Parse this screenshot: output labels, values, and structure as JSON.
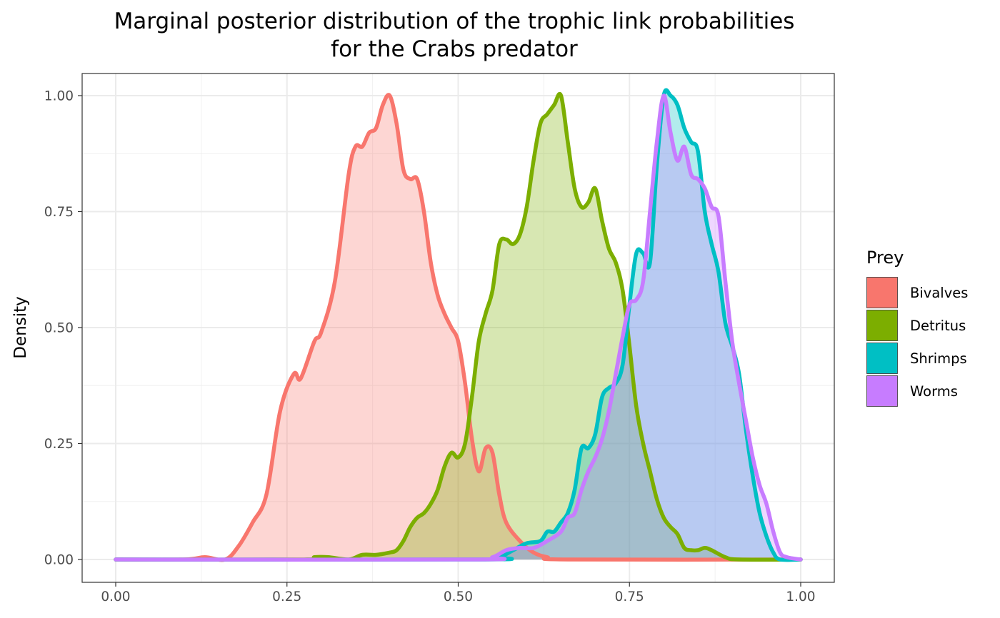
{
  "chart_data": {
    "type": "area",
    "title_lines": [
      "Marginal posterior distribution of the trophic link probabilities",
      "for the Crabs predator"
    ],
    "xlabel": "",
    "ylabel": "Density",
    "xlim": [
      0,
      1
    ],
    "ylim": [
      0,
      1
    ],
    "x_ticks": [
      "0.00",
      "0.25",
      "0.50",
      "0.75",
      "1.00"
    ],
    "y_ticks": [
      "0.00",
      "0.25",
      "0.50",
      "0.75",
      "1.00"
    ],
    "x_tick_values": [
      0,
      0.25,
      0.5,
      0.75,
      1
    ],
    "y_tick_values": [
      0,
      0.25,
      0.5,
      0.75,
      1
    ],
    "grid": true,
    "legend": {
      "title": "Prey",
      "position": "right"
    },
    "fill_opacity": 0.3,
    "series": [
      {
        "name": "Bivalves",
        "color": "#F8766D",
        "points": [
          [
            0.0,
            0.0
          ],
          [
            0.1,
            0.0
          ],
          [
            0.13,
            0.005
          ],
          [
            0.16,
            0.0
          ],
          [
            0.18,
            0.03
          ],
          [
            0.2,
            0.08
          ],
          [
            0.22,
            0.14
          ],
          [
            0.24,
            0.32
          ],
          [
            0.26,
            0.4
          ],
          [
            0.27,
            0.39
          ],
          [
            0.29,
            0.47
          ],
          [
            0.3,
            0.49
          ],
          [
            0.32,
            0.6
          ],
          [
            0.34,
            0.83
          ],
          [
            0.35,
            0.89
          ],
          [
            0.36,
            0.89
          ],
          [
            0.37,
            0.92
          ],
          [
            0.38,
            0.93
          ],
          [
            0.39,
            0.98
          ],
          [
            0.4,
            1.0
          ],
          [
            0.41,
            0.94
          ],
          [
            0.42,
            0.84
          ],
          [
            0.43,
            0.82
          ],
          [
            0.44,
            0.82
          ],
          [
            0.45,
            0.75
          ],
          [
            0.46,
            0.64
          ],
          [
            0.47,
            0.57
          ],
          [
            0.48,
            0.53
          ],
          [
            0.49,
            0.5
          ],
          [
            0.5,
            0.47
          ],
          [
            0.51,
            0.38
          ],
          [
            0.52,
            0.26
          ],
          [
            0.53,
            0.19
          ],
          [
            0.54,
            0.24
          ],
          [
            0.55,
            0.23
          ],
          [
            0.56,
            0.14
          ],
          [
            0.57,
            0.08
          ],
          [
            0.59,
            0.04
          ],
          [
            0.61,
            0.015
          ],
          [
            0.63,
            0.005
          ],
          [
            0.66,
            0.0
          ],
          [
            1.0,
            0.0
          ]
        ]
      },
      {
        "name": "Detritus",
        "color": "#7CAE00",
        "points": [
          [
            0.0,
            0.0
          ],
          [
            0.27,
            0.0
          ],
          [
            0.29,
            0.005
          ],
          [
            0.31,
            0.005
          ],
          [
            0.34,
            0.0
          ],
          [
            0.36,
            0.01
          ],
          [
            0.38,
            0.01
          ],
          [
            0.4,
            0.015
          ],
          [
            0.41,
            0.02
          ],
          [
            0.42,
            0.04
          ],
          [
            0.43,
            0.07
          ],
          [
            0.44,
            0.09
          ],
          [
            0.45,
            0.1
          ],
          [
            0.46,
            0.12
          ],
          [
            0.47,
            0.15
          ],
          [
            0.48,
            0.2
          ],
          [
            0.49,
            0.23
          ],
          [
            0.5,
            0.22
          ],
          [
            0.51,
            0.25
          ],
          [
            0.52,
            0.35
          ],
          [
            0.53,
            0.47
          ],
          [
            0.54,
            0.53
          ],
          [
            0.55,
            0.58
          ],
          [
            0.56,
            0.68
          ],
          [
            0.57,
            0.69
          ],
          [
            0.58,
            0.68
          ],
          [
            0.59,
            0.7
          ],
          [
            0.6,
            0.76
          ],
          [
            0.61,
            0.86
          ],
          [
            0.62,
            0.94
          ],
          [
            0.63,
            0.96
          ],
          [
            0.64,
            0.98
          ],
          [
            0.65,
            1.0
          ],
          [
            0.66,
            0.9
          ],
          [
            0.67,
            0.8
          ],
          [
            0.68,
            0.76
          ],
          [
            0.69,
            0.77
          ],
          [
            0.7,
            0.8
          ],
          [
            0.71,
            0.73
          ],
          [
            0.72,
            0.67
          ],
          [
            0.73,
            0.64
          ],
          [
            0.74,
            0.58
          ],
          [
            0.75,
            0.46
          ],
          [
            0.76,
            0.33
          ],
          [
            0.77,
            0.25
          ],
          [
            0.78,
            0.19
          ],
          [
            0.79,
            0.13
          ],
          [
            0.8,
            0.09
          ],
          [
            0.81,
            0.07
          ],
          [
            0.82,
            0.055
          ],
          [
            0.83,
            0.025
          ],
          [
            0.84,
            0.02
          ],
          [
            0.85,
            0.02
          ],
          [
            0.86,
            0.025
          ],
          [
            0.87,
            0.02
          ],
          [
            0.89,
            0.005
          ],
          [
            0.91,
            0.0
          ],
          [
            1.0,
            0.0
          ]
        ]
      },
      {
        "name": "Shrimps",
        "color": "#00BFC4",
        "points": [
          [
            0.0,
            0.0
          ],
          [
            0.53,
            0.0
          ],
          [
            0.56,
            0.005
          ],
          [
            0.58,
            0.02
          ],
          [
            0.6,
            0.035
          ],
          [
            0.62,
            0.04
          ],
          [
            0.63,
            0.06
          ],
          [
            0.64,
            0.06
          ],
          [
            0.65,
            0.08
          ],
          [
            0.66,
            0.1
          ],
          [
            0.67,
            0.15
          ],
          [
            0.68,
            0.24
          ],
          [
            0.69,
            0.24
          ],
          [
            0.7,
            0.27
          ],
          [
            0.71,
            0.35
          ],
          [
            0.72,
            0.37
          ],
          [
            0.73,
            0.38
          ],
          [
            0.74,
            0.42
          ],
          [
            0.75,
            0.55
          ],
          [
            0.76,
            0.66
          ],
          [
            0.77,
            0.66
          ],
          [
            0.78,
            0.64
          ],
          [
            0.79,
            0.85
          ],
          [
            0.8,
            1.0
          ],
          [
            0.81,
            1.0
          ],
          [
            0.82,
            0.98
          ],
          [
            0.83,
            0.93
          ],
          [
            0.84,
            0.9
          ],
          [
            0.85,
            0.88
          ],
          [
            0.86,
            0.75
          ],
          [
            0.87,
            0.68
          ],
          [
            0.88,
            0.62
          ],
          [
            0.89,
            0.51
          ],
          [
            0.9,
            0.46
          ],
          [
            0.91,
            0.4
          ],
          [
            0.92,
            0.28
          ],
          [
            0.93,
            0.18
          ],
          [
            0.94,
            0.1
          ],
          [
            0.95,
            0.05
          ],
          [
            0.96,
            0.015
          ],
          [
            0.97,
            0.0
          ],
          [
            1.0,
            0.0
          ]
        ]
      },
      {
        "name": "Worms",
        "color": "#C77CFF",
        "points": [
          [
            0.0,
            0.0
          ],
          [
            0.52,
            0.0
          ],
          [
            0.55,
            0.005
          ],
          [
            0.57,
            0.02
          ],
          [
            0.59,
            0.025
          ],
          [
            0.61,
            0.025
          ],
          [
            0.63,
            0.04
          ],
          [
            0.65,
            0.06
          ],
          [
            0.66,
            0.09
          ],
          [
            0.67,
            0.1
          ],
          [
            0.68,
            0.15
          ],
          [
            0.69,
            0.19
          ],
          [
            0.7,
            0.22
          ],
          [
            0.71,
            0.26
          ],
          [
            0.72,
            0.32
          ],
          [
            0.73,
            0.4
          ],
          [
            0.74,
            0.48
          ],
          [
            0.75,
            0.55
          ],
          [
            0.76,
            0.56
          ],
          [
            0.77,
            0.6
          ],
          [
            0.78,
            0.75
          ],
          [
            0.79,
            0.9
          ],
          [
            0.8,
            1.0
          ],
          [
            0.81,
            0.92
          ],
          [
            0.82,
            0.86
          ],
          [
            0.83,
            0.89
          ],
          [
            0.84,
            0.83
          ],
          [
            0.85,
            0.82
          ],
          [
            0.86,
            0.8
          ],
          [
            0.87,
            0.76
          ],
          [
            0.88,
            0.74
          ],
          [
            0.89,
            0.6
          ],
          [
            0.9,
            0.47
          ],
          [
            0.91,
            0.38
          ],
          [
            0.92,
            0.3
          ],
          [
            0.93,
            0.22
          ],
          [
            0.94,
            0.16
          ],
          [
            0.95,
            0.12
          ],
          [
            0.96,
            0.06
          ],
          [
            0.97,
            0.015
          ],
          [
            0.98,
            0.005
          ],
          [
            1.0,
            0.0
          ]
        ]
      }
    ]
  }
}
